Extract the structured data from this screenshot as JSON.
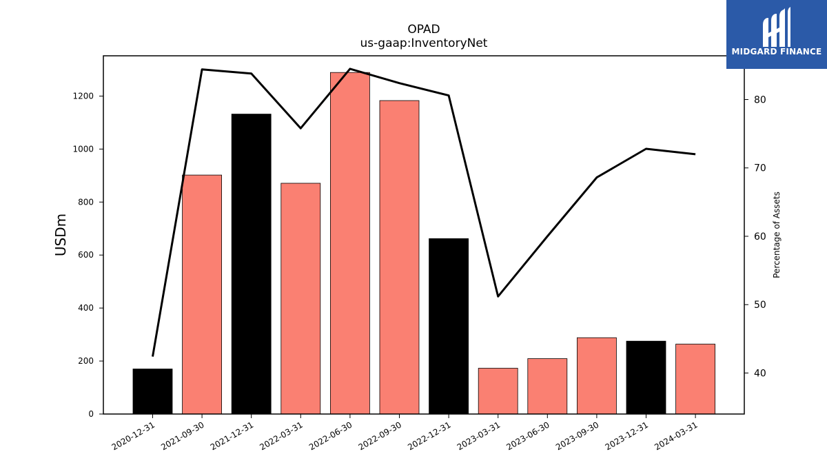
{
  "chart_data": {
    "type": "bar",
    "title": "OPAD",
    "subtitle": "us-gaap:InventoryNet",
    "ylabel": "USDm",
    "ylabel_right": "Percentage of Assets",
    "categories": [
      "2020-12-31",
      "2021-09-30",
      "2021-12-31",
      "2022-03-31",
      "2022-06-30",
      "2022-09-30",
      "2022-12-31",
      "2023-03-31",
      "2023-06-30",
      "2023-09-30",
      "2023-12-31",
      "2024-03-31"
    ],
    "series": [
      {
        "type": "bar",
        "values": [
          170,
          902,
          1132,
          871,
          1289,
          1183,
          662,
          173,
          209,
          288,
          275,
          264
        ],
        "colors": [
          "#000000",
          "#fa8072",
          "#000000",
          "#fa8072",
          "#fa8072",
          "#fa8072",
          "#000000",
          "#fa8072",
          "#fa8072",
          "#fa8072",
          "#000000",
          "#fa8072"
        ]
      },
      {
        "type": "line",
        "axis": "right",
        "color": "#000000",
        "values": [
          42.4,
          84.4,
          83.8,
          75.8,
          84.5,
          82.4,
          80.6,
          51.2,
          60.0,
          68.6,
          72.8,
          72.0
        ]
      }
    ],
    "ylim": [
      0,
      1352
    ],
    "yticks": [
      0,
      200,
      400,
      600,
      800,
      1000,
      1200
    ],
    "ylim_right": [
      34.0,
      86.4
    ],
    "yticks_right": [
      40,
      50,
      60,
      70,
      80
    ],
    "grid": false
  },
  "logo": {
    "text": "MIDGARD FINANCE",
    "background": "#2b5aa8"
  }
}
